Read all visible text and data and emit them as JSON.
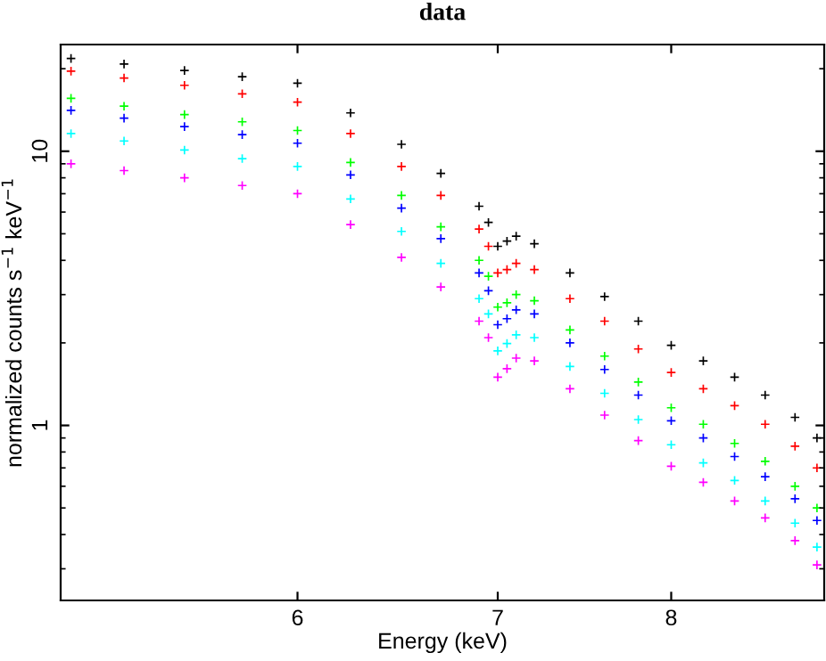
{
  "chart_data": {
    "type": "scatter",
    "title": "data",
    "xlabel": "Energy (keV)",
    "ylabel": "normalized counts s$^{−1}$ keV$^{−1}$",
    "log": "xy",
    "marker": "cross",
    "grid": false,
    "legend": false,
    "xlim": [
      5,
      9
    ],
    "ylim": [
      0.23,
      24.5
    ],
    "xticks": [
      6,
      7,
      8
    ],
    "yticks": [
      1,
      10
    ],
    "x": [
      5.04,
      5.25,
      5.5,
      5.75,
      6.0,
      6.25,
      6.5,
      6.7,
      6.9,
      6.95,
      7.0,
      7.05,
      7.1,
      7.2,
      7.4,
      7.6,
      7.8,
      8.0,
      8.2,
      8.4,
      8.6,
      8.8,
      8.95
    ],
    "series": [
      {
        "color": "#000000",
        "values": [
          21.8,
          20.8,
          19.7,
          18.7,
          17.7,
          13.8,
          10.6,
          8.3,
          6.3,
          5.5,
          4.5,
          4.7,
          4.9,
          4.6,
          3.6,
          2.95,
          2.4,
          1.96,
          1.72,
          1.5,
          1.29,
          1.07,
          0.9
        ]
      },
      {
        "color": "#ff0000",
        "values": [
          19.6,
          18.5,
          17.4,
          16.2,
          15.1,
          11.6,
          8.8,
          6.9,
          5.2,
          4.5,
          3.6,
          3.7,
          3.9,
          3.7,
          2.9,
          2.4,
          1.9,
          1.56,
          1.36,
          1.18,
          1.01,
          0.84,
          0.7
        ]
      },
      {
        "color": "#00ff00",
        "values": [
          15.6,
          14.6,
          13.6,
          12.8,
          11.9,
          9.1,
          6.9,
          5.3,
          4.0,
          3.5,
          2.7,
          2.8,
          3.0,
          2.85,
          2.23,
          1.79,
          1.44,
          1.16,
          1.01,
          0.86,
          0.74,
          0.6,
          0.5
        ]
      },
      {
        "color": "#0000ff",
        "values": [
          14.1,
          13.2,
          12.3,
          11.5,
          10.7,
          8.2,
          6.2,
          4.8,
          3.6,
          3.1,
          2.33,
          2.45,
          2.64,
          2.55,
          2.0,
          1.6,
          1.29,
          1.04,
          0.9,
          0.77,
          0.65,
          0.54,
          0.45
        ]
      },
      {
        "color": "#00ffff",
        "values": [
          11.6,
          10.9,
          10.1,
          9.4,
          8.8,
          6.7,
          5.1,
          3.9,
          2.9,
          2.55,
          1.87,
          1.99,
          2.14,
          2.09,
          1.64,
          1.31,
          1.05,
          0.85,
          0.73,
          0.63,
          0.53,
          0.44,
          0.36
        ]
      },
      {
        "color": "#ff00ff",
        "values": [
          9.0,
          8.5,
          8.0,
          7.5,
          7.0,
          5.4,
          4.1,
          3.2,
          2.4,
          2.09,
          1.5,
          1.61,
          1.76,
          1.72,
          1.36,
          1.09,
          0.88,
          0.71,
          0.62,
          0.53,
          0.46,
          0.38,
          0.31
        ]
      }
    ]
  }
}
